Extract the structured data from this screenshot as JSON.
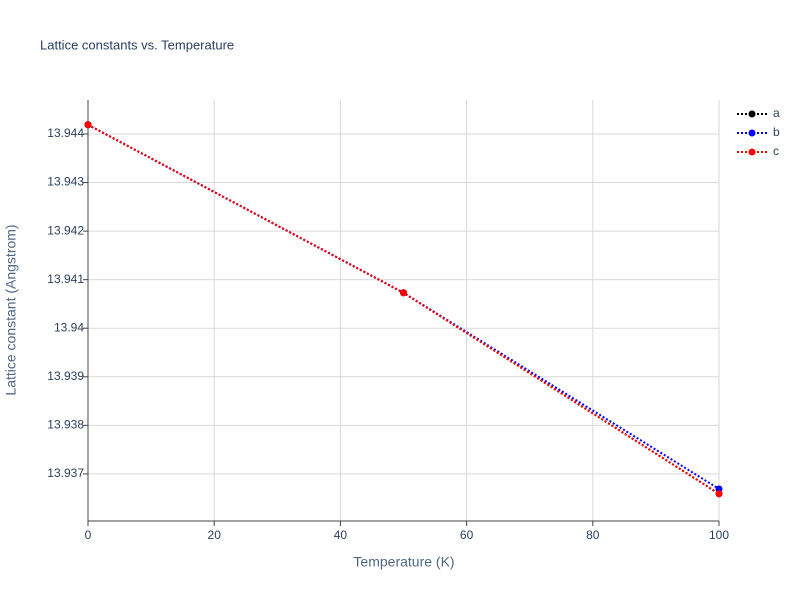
{
  "chart_data": {
    "type": "line",
    "title": "Lattice constants vs. Temperature",
    "x_label": "Temperature (K)",
    "y_label": "Lattice constant (Angstrom)",
    "x": [
      0,
      50,
      100
    ],
    "series": [
      {
        "name": "a",
        "color": "#000000",
        "values": [
          13.94419,
          13.94073,
          13.93659
        ]
      },
      {
        "name": "b",
        "color": "#0000ff",
        "values": [
          13.94419,
          13.94073,
          13.93669
        ]
      },
      {
        "name": "c",
        "color": "#ff0000",
        "values": [
          13.94419,
          13.94073,
          13.93659
        ]
      }
    ],
    "xlim": [
      0,
      100
    ],
    "xticks": [
      0,
      20,
      40,
      60,
      80,
      100
    ],
    "ylim": [
      13.93603,
      13.9447
    ],
    "yticks": [
      13.937,
      13.938,
      13.939,
      13.94,
      13.941,
      13.942,
      13.943,
      13.944
    ],
    "grid": true,
    "legend": "top-right"
  }
}
